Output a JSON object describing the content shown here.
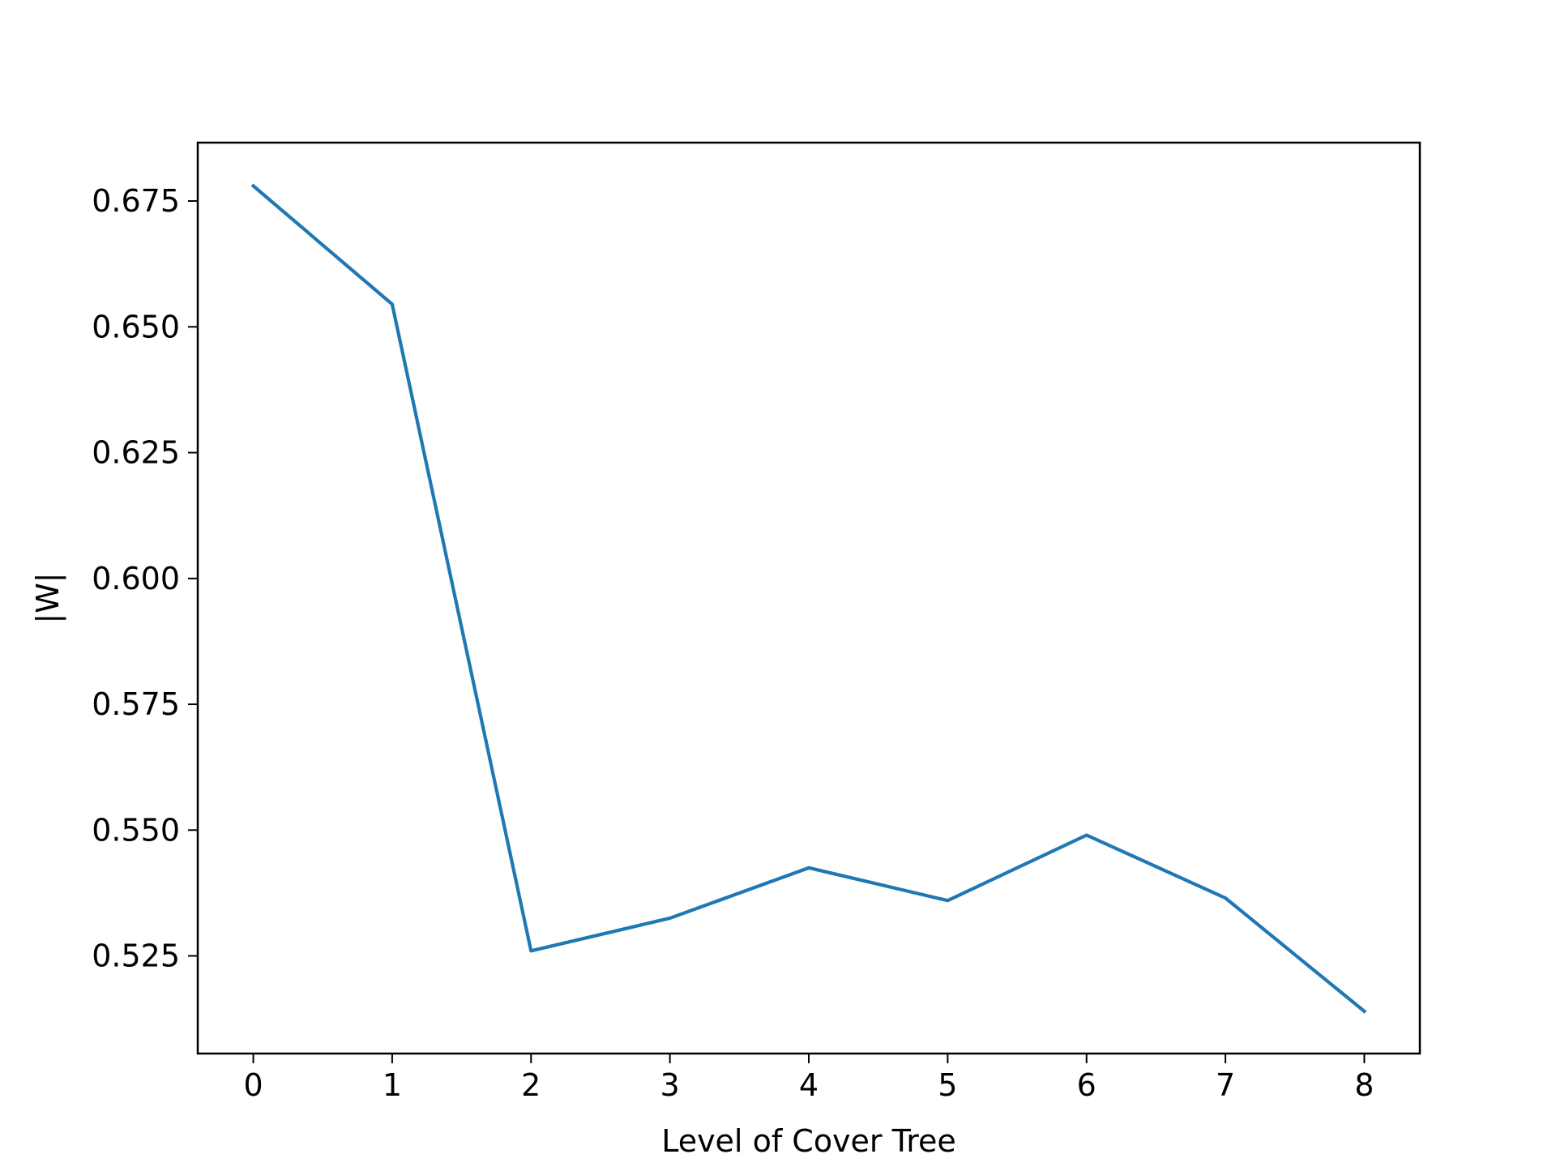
{
  "chart_data": {
    "type": "line",
    "title": "",
    "xlabel": "Level of Cover Tree",
    "ylabel": "|W|",
    "x": [
      0,
      1,
      2,
      3,
      4,
      5,
      6,
      7,
      8
    ],
    "series": [
      {
        "values": [
          0.678,
          0.6545,
          0.526,
          0.5325,
          0.5425,
          0.536,
          0.549,
          0.5365,
          0.514
        ],
        "color": "#1f77b4"
      }
    ],
    "xticks": [
      "0",
      "1",
      "2",
      "3",
      "4",
      "5",
      "6",
      "7",
      "8"
    ],
    "yticks": [
      "0.525",
      "0.550",
      "0.575",
      "0.600",
      "0.625",
      "0.650",
      "0.675"
    ],
    "ytick_values": [
      0.525,
      0.55,
      0.575,
      0.6,
      0.625,
      0.65,
      0.675
    ],
    "xlim": [
      -0.4,
      8.4
    ],
    "ylim": [
      0.5056,
      0.6866
    ],
    "grid": false,
    "legend": false
  }
}
